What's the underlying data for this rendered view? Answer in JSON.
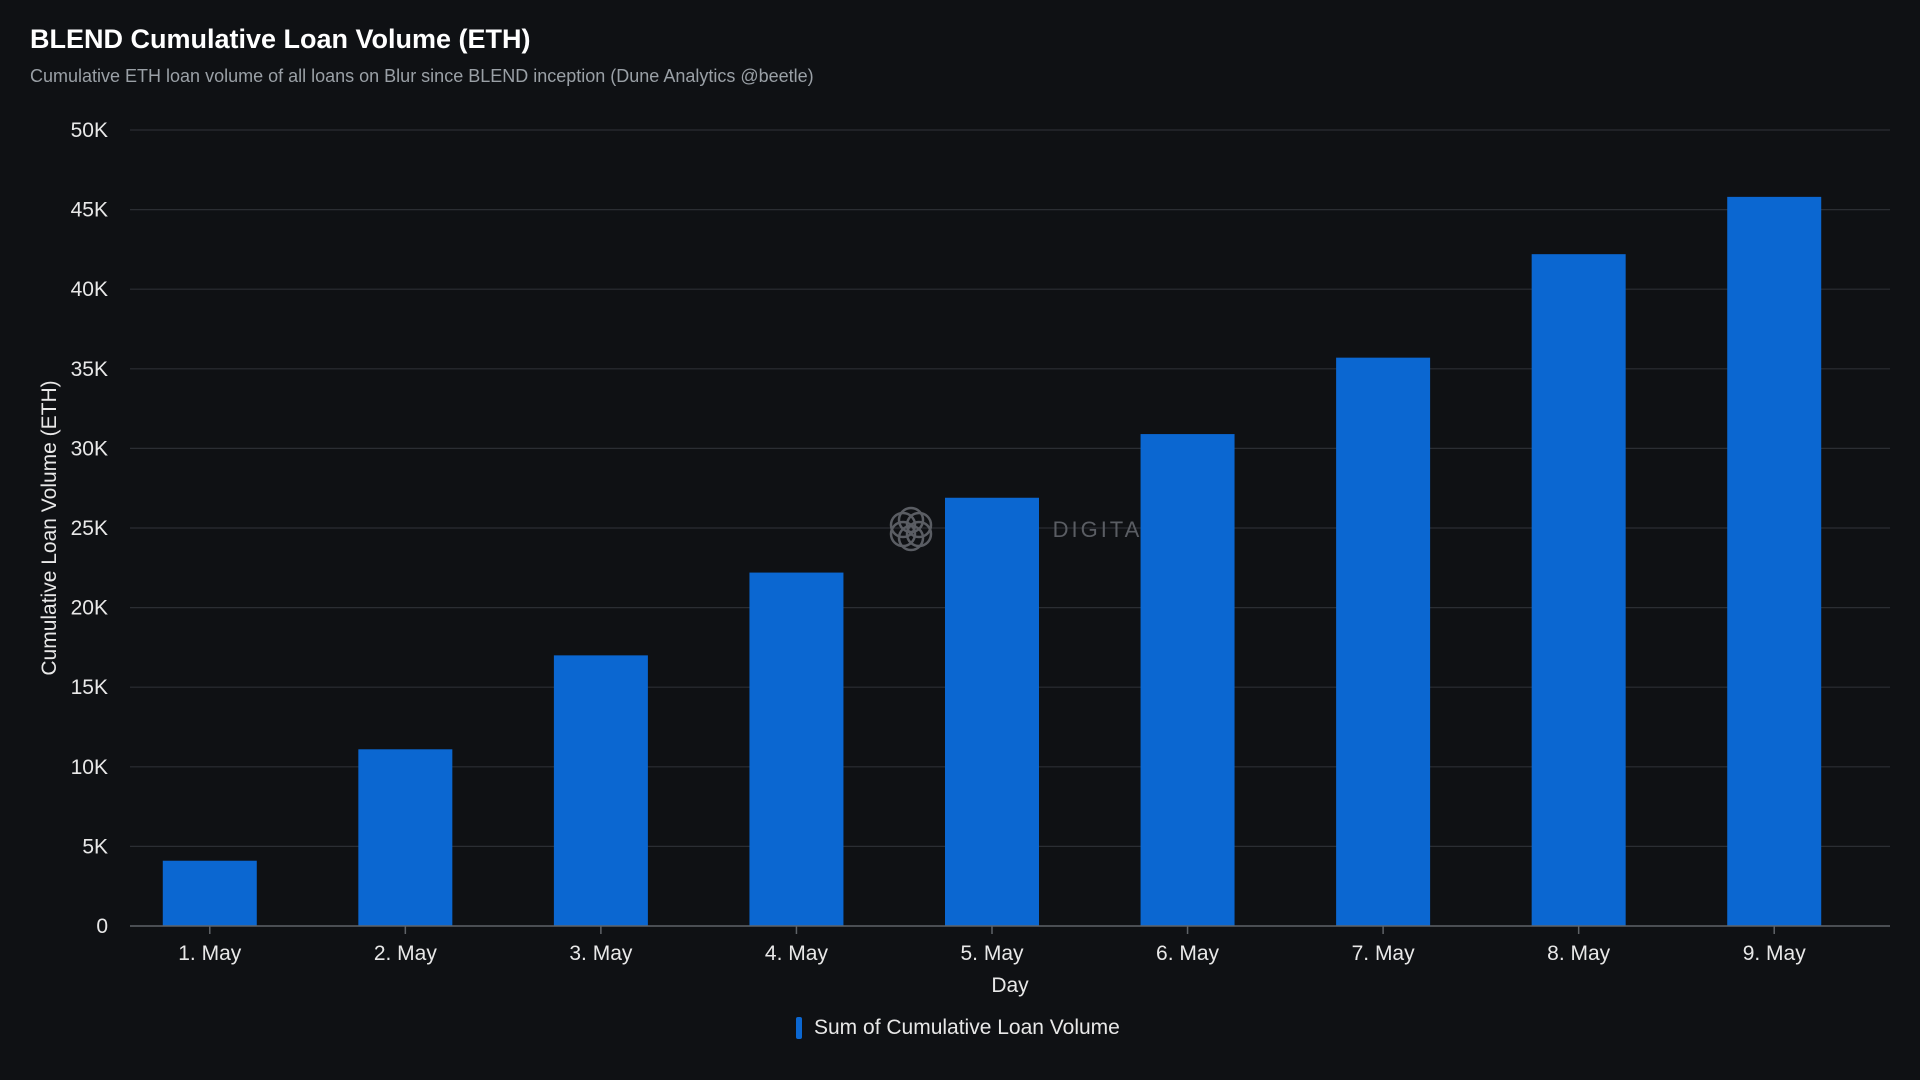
{
  "header": {
    "title": "BLEND Cumulative Loan Volume (ETH)",
    "subtitle": "Cumulative ETH loan volume of all loans on Blur since BLEND inception (Dune Analytics @beetle)"
  },
  "watermark": {
    "text": "DELPHI DIGITAL",
    "icon": "delphi-logo-icon"
  },
  "colors": {
    "background": "#0f1114",
    "bar": "#0b67d1",
    "grid": "#2b2e33",
    "axis": "#5f6368"
  },
  "legend": {
    "label": "Sum of Cumulative Loan Volume",
    "position": "bottom-center"
  },
  "chart_data": {
    "type": "bar",
    "title": "BLEND Cumulative Loan Volume (ETH)",
    "subtitle": "Cumulative ETH loan volume of all loans on Blur since BLEND inception (Dune Analytics @beetle)",
    "xlabel": "Day",
    "ylabel": "Cumulative Loan Volume (ETH)",
    "categories": [
      "1. May",
      "2. May",
      "3. May",
      "4. May",
      "5. May",
      "6. May",
      "7. May",
      "8. May",
      "9. May"
    ],
    "series": [
      {
        "name": "Sum of Cumulative Loan Volume",
        "values": [
          4100,
          11100,
          17000,
          22200,
          26900,
          30900,
          35700,
          42200,
          45800
        ]
      }
    ],
    "ylim": [
      0,
      50000
    ],
    "yticks": [
      0,
      5000,
      10000,
      15000,
      20000,
      25000,
      30000,
      35000,
      40000,
      45000,
      50000
    ],
    "ytick_labels": [
      "0",
      "5K",
      "10K",
      "15K",
      "20K",
      "25K",
      "30K",
      "35K",
      "40K",
      "45K",
      "50K"
    ],
    "grid": true,
    "legend_position": "bottom-center"
  }
}
